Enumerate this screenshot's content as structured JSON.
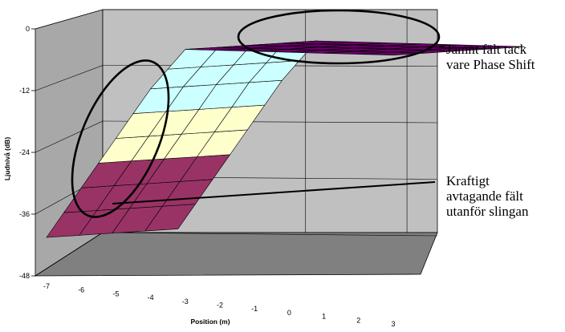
{
  "chart_data": {
    "type": "surface-3d",
    "title": "",
    "xlabel": "Position (m)",
    "ylabel": "Ljudnivå (dB)",
    "x_ticks": [
      "-7",
      "-6",
      "-5",
      "-4",
      "-3",
      "-2",
      "-1",
      "0",
      "1",
      "2",
      "3"
    ],
    "y_ticks": [
      "0",
      "-12",
      "-24",
      "-36",
      "-48"
    ],
    "ylim": [
      -48,
      0
    ],
    "xlim": [
      -7,
      3
    ],
    "grid": true,
    "bands": [
      {
        "range": [
          -48,
          -36
        ],
        "color": "#9999ff"
      },
      {
        "range": [
          -36,
          -24
        ],
        "color": "#993366"
      },
      {
        "range": [
          -24,
          -12
        ],
        "color": "#ffffcc"
      },
      {
        "range": [
          -12,
          0
        ],
        "color": "#ccffff"
      },
      {
        "range": [
          0,
          12
        ],
        "color": "#660066"
      }
    ],
    "profile": [
      {
        "x": -7,
        "y": -38
      },
      {
        "x": -6,
        "y": -28
      },
      {
        "x": -5,
        "y": -18
      },
      {
        "x": -4,
        "y": -8
      },
      {
        "x": -3,
        "y": 0
      },
      {
        "x": -2,
        "y": 0
      },
      {
        "x": -1,
        "y": 0
      },
      {
        "x": 0,
        "y": 0
      },
      {
        "x": 1,
        "y": 0
      },
      {
        "x": 2,
        "y": 0
      },
      {
        "x": 3,
        "y": 0
      }
    ],
    "annotations": [
      {
        "id": "flat",
        "lines": [
          "Jämnt fält tack",
          "vare Phase Shift"
        ]
      },
      {
        "id": "falloff",
        "lines": [
          "Kraftigt",
          "avtagande fält",
          "utanför slingan"
        ]
      }
    ]
  },
  "colors": {
    "back_wall": "#c0c0c0",
    "side_wall": "#a8a8a8",
    "floor": "#808080",
    "grid": "#000000",
    "surface_edge": "#000000"
  }
}
